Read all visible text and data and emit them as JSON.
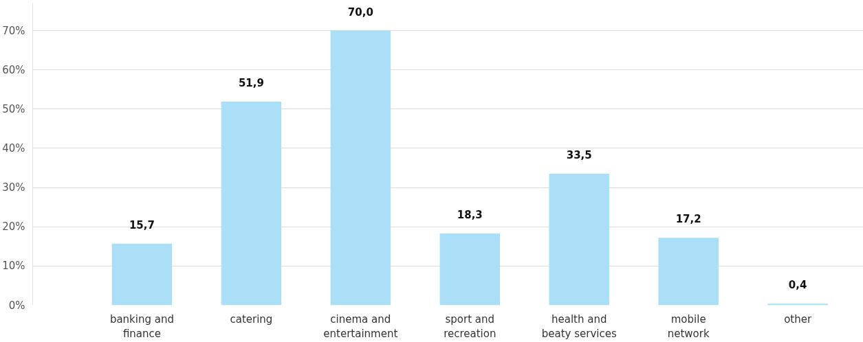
{
  "chart_data": {
    "type": "bar",
    "categories": [
      "banking and\nfinance",
      "catering",
      "cinema and\nentertainment",
      "sport and\nrecreation",
      "health and\nbeaty services",
      "mobile\nnetwork",
      "other"
    ],
    "series": [
      {
        "color": "#aadff7",
        "values": [
          15.7,
          51.9,
          70.0,
          18.3,
          33.5,
          17.2,
          0.4
        ]
      }
    ],
    "value_labels": [
      "15,7",
      "51,9",
      "70,0",
      "18,3",
      "33,5",
      "17,2",
      "0,4"
    ],
    "ylim": [
      0,
      77
    ],
    "yticks": [
      {
        "value": 0,
        "label": "0%"
      },
      {
        "value": 10,
        "label": "10%"
      },
      {
        "value": 20,
        "label": "20%"
      },
      {
        "value": 30,
        "label": "30%"
      },
      {
        "value": 40,
        "label": "40%"
      },
      {
        "value": 50,
        "label": "50%"
      },
      {
        "value": 60,
        "label": "60%"
      },
      {
        "value": 70,
        "label": "70%"
      }
    ],
    "grid": "y"
  }
}
